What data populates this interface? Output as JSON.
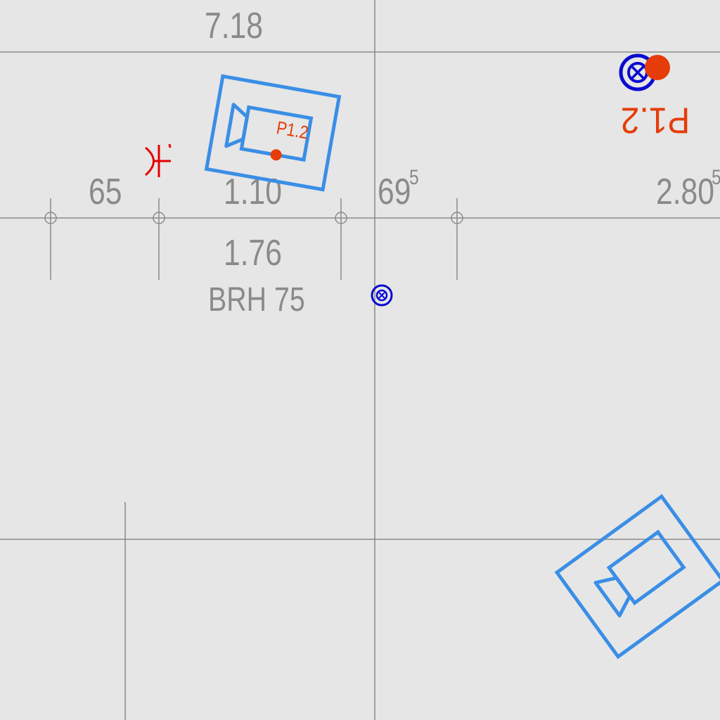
{
  "drawing": {
    "dims": {
      "top": "7.18",
      "d65": "65",
      "d110": "1.10",
      "d69": "69",
      "d69_sup": "5",
      "d280": "2.80",
      "d280_sup": "5",
      "d176": "1.76",
      "brh": "BRH 75"
    },
    "cameras": [
      {
        "label": "P1.2"
      },
      {
        "label": ""
      }
    ],
    "socket_label": "P1.2",
    "colors": {
      "background": "#e6e6e6",
      "line": "#8a8a8a",
      "camera": "#3a8ee6",
      "socket": "#0a0ad0",
      "marker": "#e63c0a",
      "switch": "#e60000"
    }
  }
}
